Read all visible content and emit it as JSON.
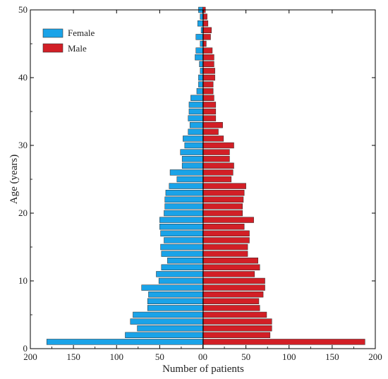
{
  "chart_data": {
    "type": "bar",
    "orientation": "horizontal",
    "layout": "population-pyramid",
    "xlabel": "Number of patients",
    "ylabel": "Age (years)",
    "xlim": [
      -200,
      200
    ],
    "ylim": [
      0,
      50
    ],
    "x_ticks": [
      -200,
      -150,
      -100,
      -50,
      0,
      50,
      100,
      150,
      200
    ],
    "x_tick_labels": [
      "200",
      "150",
      "100",
      "50",
      "00",
      "50",
      "100",
      "150",
      "200"
    ],
    "y_ticks": [
      0,
      10,
      20,
      30,
      40,
      50
    ],
    "y_tick_labels": [
      "0",
      "10",
      "20",
      "30",
      "40",
      "50"
    ],
    "grid": false,
    "legend": "top-left",
    "ages": [
      1,
      2,
      3,
      4,
      5,
      6,
      7,
      8,
      9,
      10,
      11,
      12,
      13,
      14,
      15,
      16,
      17,
      18,
      19,
      20,
      21,
      22,
      23,
      24,
      25,
      26,
      27,
      28,
      29,
      30,
      31,
      32,
      33,
      34,
      35,
      36,
      37,
      38,
      39,
      40,
      41,
      42,
      43,
      44,
      45,
      46,
      47,
      48,
      49,
      50
    ],
    "series": [
      {
        "name": "Female",
        "color": "#1aa3e8",
        "values": [
          181,
          90,
          76,
          84,
          81,
          64,
          64,
          63,
          71,
          51,
          54,
          48,
          41,
          48,
          49,
          45,
          49,
          50,
          50,
          45,
          44,
          44,
          43,
          39,
          30,
          38,
          24,
          24,
          26,
          21,
          23,
          17,
          15,
          17,
          16,
          16,
          14,
          7,
          5,
          5,
          3,
          4,
          9,
          8,
          3,
          8,
          2,
          6,
          3,
          5
        ]
      },
      {
        "name": "Male",
        "color": "#d21f26",
        "values": [
          188,
          78,
          80,
          80,
          74,
          66,
          65,
          70,
          72,
          72,
          60,
          66,
          64,
          52,
          52,
          54,
          54,
          48,
          59,
          46,
          46,
          47,
          48,
          50,
          33,
          35,
          36,
          31,
          31,
          36,
          24,
          18,
          23,
          15,
          15,
          15,
          13,
          12,
          12,
          14,
          14,
          13,
          13,
          11,
          4,
          9,
          10,
          6,
          5,
          3
        ]
      }
    ]
  }
}
